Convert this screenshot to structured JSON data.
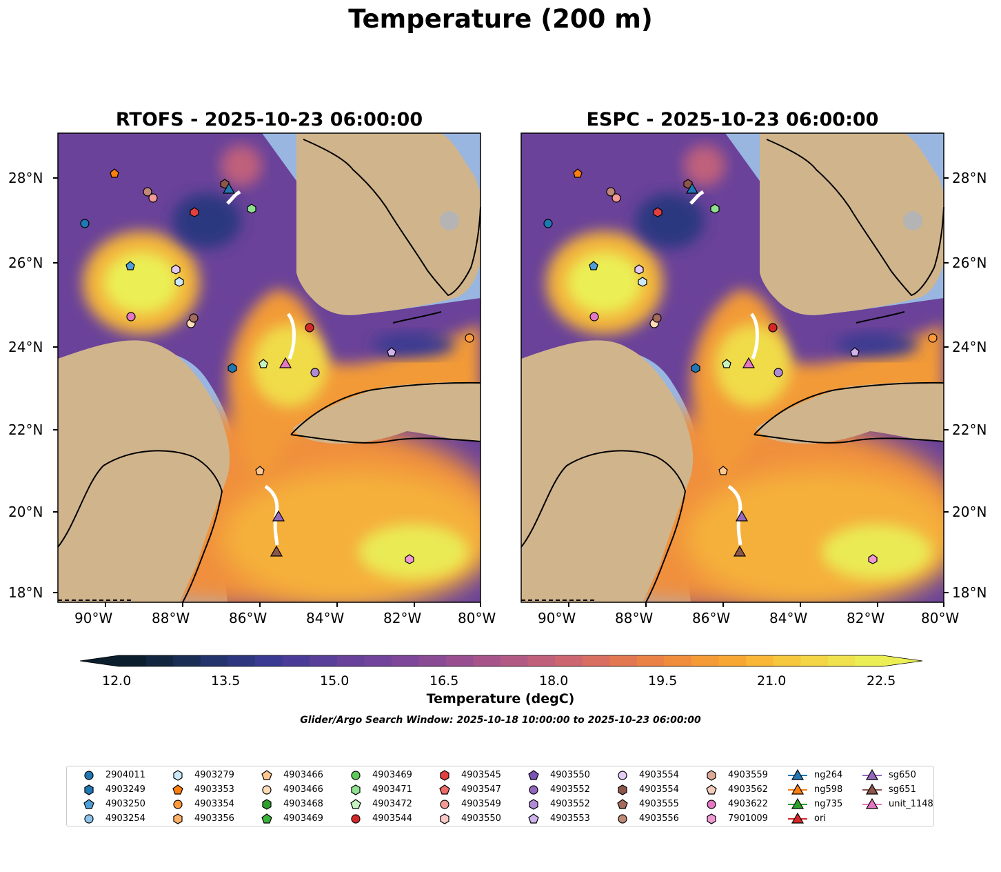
{
  "suptitle": "Temperature (200 m)",
  "panels": [
    {
      "title": "RTOFS - 2025-10-23 06:00:00"
    },
    {
      "title": "ESPC - 2025-10-23 06:00:00"
    }
  ],
  "axes": {
    "lon_labels": [
      "90°W",
      "88°W",
      "86°W",
      "84°W",
      "82°W",
      "80°W"
    ],
    "lat_labels": [
      "28°N",
      "26°N",
      "24°N",
      "22°N",
      "20°N",
      "18°N"
    ]
  },
  "colorbar": {
    "label": "Temperature (degC)",
    "ticks": [
      "12.0",
      "13.5",
      "15.0",
      "16.5",
      "18.0",
      "19.5",
      "21.0",
      "22.5"
    ],
    "colors": [
      "#0b1e2e",
      "#13263f",
      "#1a2e55",
      "#23336b",
      "#2c3780",
      "#3a3a92",
      "#4a3c96",
      "#593f98",
      "#67419a",
      "#72449b",
      "#7e4799",
      "#8a4b95",
      "#984f90",
      "#a6548a",
      "#b35a84",
      "#c0607b",
      "#cc6670",
      "#d86e61",
      "#e27852",
      "#ea8246",
      "#f08d3c",
      "#f49a36",
      "#f7a834",
      "#f8b736",
      "#f6c63d",
      "#f3d545",
      "#efe24e",
      "#ebef55"
    ]
  },
  "search_window": "Glider/Argo Search Window: 2025-10-18 10:00:00 to 2025-10-23 06:00:00",
  "legend": {
    "columns": [
      [
        {
          "label": "2904011",
          "shape": "circle",
          "color": "#1f77b4"
        },
        {
          "label": "4903249",
          "shape": "hexagon",
          "color": "#1f77b4"
        },
        {
          "label": "4903250",
          "shape": "pentagon",
          "color": "#4e9fd8"
        },
        {
          "label": "4903254",
          "shape": "circle",
          "color": "#8ec3ec"
        }
      ],
      [
        {
          "label": "4903279",
          "shape": "hexagon",
          "color": "#cde8fb"
        },
        {
          "label": "4903353",
          "shape": "pentagon",
          "color": "#ff7f0e"
        },
        {
          "label": "4903354",
          "shape": "circle",
          "color": "#ff9a3c"
        },
        {
          "label": "4903356",
          "shape": "hexagon",
          "color": "#ffb266"
        }
      ],
      [
        {
          "label": "4903466",
          "shape": "pentagon",
          "color": "#ffc891"
        },
        {
          "label": "4903466",
          "shape": "circle",
          "color": "#ffdcb8"
        },
        {
          "label": "4903468",
          "shape": "hexagon",
          "color": "#2ca02c"
        },
        {
          "label": "4903469",
          "shape": "pentagon",
          "color": "#3bb33b"
        }
      ],
      [
        {
          "label": "4903469",
          "shape": "circle",
          "color": "#5ccb5c"
        },
        {
          "label": "4903471",
          "shape": "hexagon",
          "color": "#8fe08f"
        },
        {
          "label": "4903472",
          "shape": "pentagon",
          "color": "#c7f3c3"
        },
        {
          "label": "4903544",
          "shape": "circle",
          "color": "#d62728"
        }
      ],
      [
        {
          "label": "4903545",
          "shape": "hexagon",
          "color": "#e2403e"
        },
        {
          "label": "4903547",
          "shape": "pentagon",
          "color": "#ec6b67"
        },
        {
          "label": "4903549",
          "shape": "circle",
          "color": "#f49a96"
        },
        {
          "label": "4903550",
          "shape": "hexagon",
          "color": "#fbc8c4"
        }
      ],
      [
        {
          "label": "4903550",
          "shape": "pentagon",
          "color": "#7b52b5"
        },
        {
          "label": "4903552",
          "shape": "circle",
          "color": "#9467bd"
        },
        {
          "label": "4903552",
          "shape": "hexagon",
          "color": "#b18ad6"
        },
        {
          "label": "4903553",
          "shape": "pentagon",
          "color": "#cfb2ee"
        }
      ],
      [
        {
          "label": "4903554",
          "shape": "circle",
          "color": "#e3cbf6"
        },
        {
          "label": "4903554",
          "shape": "hexagon",
          "color": "#8c564b"
        },
        {
          "label": "4903555",
          "shape": "pentagon",
          "color": "#a36a5d"
        },
        {
          "label": "4903556",
          "shape": "circle",
          "color": "#c08877"
        }
      ],
      [
        {
          "label": "4903559",
          "shape": "hexagon",
          "color": "#dba895"
        },
        {
          "label": "4903562",
          "shape": "pentagon",
          "color": "#f3cbbc"
        },
        {
          "label": "4903622",
          "shape": "circle",
          "color": "#e377c2"
        },
        {
          "label": "7901009",
          "shape": "hexagon",
          "color": "#ef98d3"
        }
      ],
      [
        {
          "label": "ng264",
          "shape": "triangle",
          "color": "#1f77b4"
        },
        {
          "label": "ng598",
          "shape": "triangle",
          "color": "#ff7f0e"
        },
        {
          "label": "ng735",
          "shape": "triangle",
          "color": "#2ca02c"
        },
        {
          "label": "ori",
          "shape": "triangle",
          "color": "#d62728"
        }
      ],
      [
        {
          "label": "sg650",
          "shape": "triangle",
          "color": "#9467bd"
        },
        {
          "label": "sg651",
          "shape": "triangle",
          "color": "#8c564b"
        },
        {
          "label": "unit_1148",
          "shape": "triangle",
          "color": "#e377c2"
        }
      ]
    ]
  },
  "colors": {
    "ocean": "#99b6e1",
    "land": "#d0b48c",
    "lake": "#b4b4b4"
  }
}
